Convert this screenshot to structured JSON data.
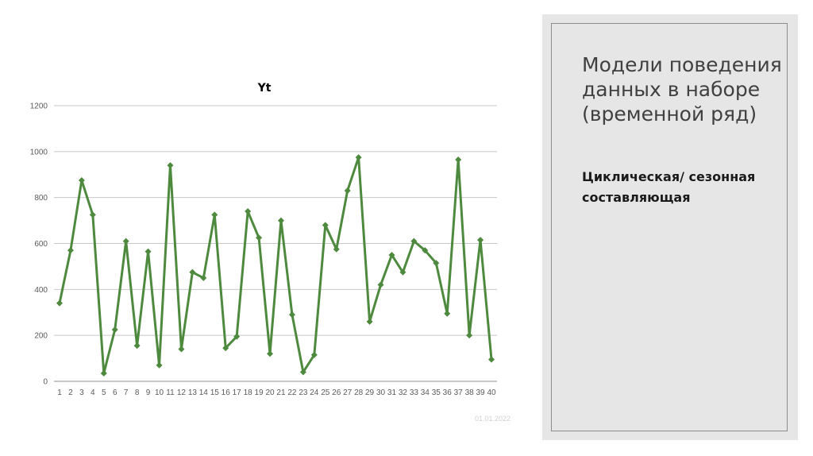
{
  "chart_data": {
    "type": "line",
    "title": "Yt",
    "xlabel": "",
    "ylabel": "",
    "x": [
      1,
      2,
      3,
      4,
      5,
      6,
      7,
      8,
      9,
      10,
      11,
      12,
      13,
      14,
      15,
      16,
      17,
      18,
      19,
      20,
      21,
      22,
      23,
      24,
      25,
      26,
      27,
      28,
      29,
      30,
      31,
      32,
      33,
      34,
      35,
      36,
      37,
      38,
      39,
      40
    ],
    "values": [
      340,
      570,
      875,
      725,
      35,
      225,
      610,
      155,
      565,
      70,
      940,
      140,
      475,
      450,
      725,
      145,
      195,
      740,
      625,
      120,
      700,
      290,
      40,
      115,
      680,
      575,
      830,
      975,
      260,
      420,
      550,
      475,
      610,
      570,
      515,
      295,
      965,
      200,
      615,
      95
    ],
    "ylim": [
      0,
      1200
    ],
    "yticks": [
      0,
      200,
      400,
      600,
      800,
      1000,
      1200
    ],
    "grid": true,
    "legend": "none",
    "line_color": "#4e8a3e",
    "marker": "diamond"
  },
  "slide": {
    "title": "Модели поведения данных в наборе (временной ряд)",
    "subtitle": "Циклическая/ сезонная составляющая",
    "date": "01.01.2022",
    "panel_color": "#e6e6e6"
  }
}
